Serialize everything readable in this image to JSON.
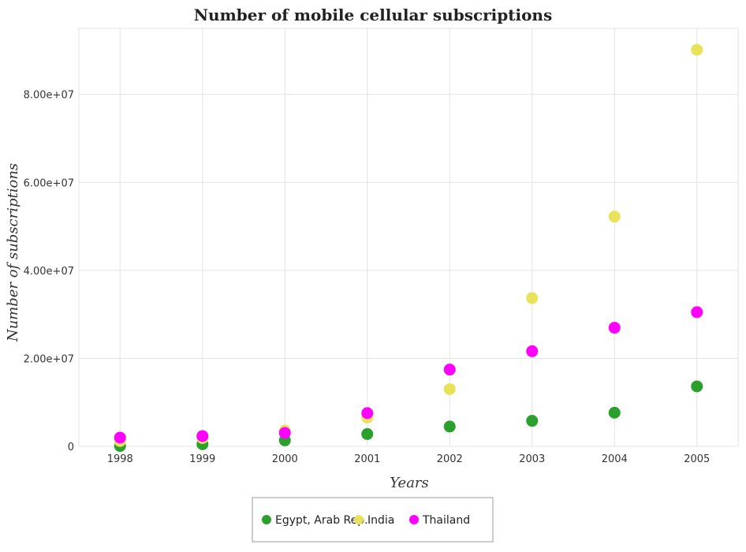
{
  "chart_data": {
    "type": "scatter",
    "title": "Number of mobile cellular subscriptions",
    "xlabel": "Years",
    "ylabel": "Number of subscriptions",
    "x": [
      "1998",
      "1999",
      "2000",
      "2001",
      "2002",
      "2003",
      "2004",
      "2005"
    ],
    "ylim": [
      0,
      95000000
    ],
    "yticks": [
      0,
      20000000,
      40000000,
      60000000,
      80000000
    ],
    "ytick_labels": [
      "0",
      "2.00e+07",
      "4.00e+07",
      "6.00e+07",
      "8.00e+07"
    ],
    "grid": true,
    "legend_position": "bottom-center",
    "series": [
      {
        "name": "Egypt, Arab Rep.",
        "color": "#2ca02c",
        "values": [
          87000,
          480000,
          1360000,
          2793000,
          4495000,
          5797000,
          7643000,
          13629000
        ]
      },
      {
        "name": "India",
        "color": "#e8e25a",
        "values": [
          1195000,
          1884000,
          3577000,
          6540000,
          13000000,
          33690000,
          52220000,
          90140000
        ]
      },
      {
        "name": "Thailand",
        "color": "#ff00ff",
        "values": [
          1977000,
          2339000,
          3056000,
          7550000,
          17449000,
          21617000,
          26965000,
          30497000
        ]
      }
    ]
  }
}
